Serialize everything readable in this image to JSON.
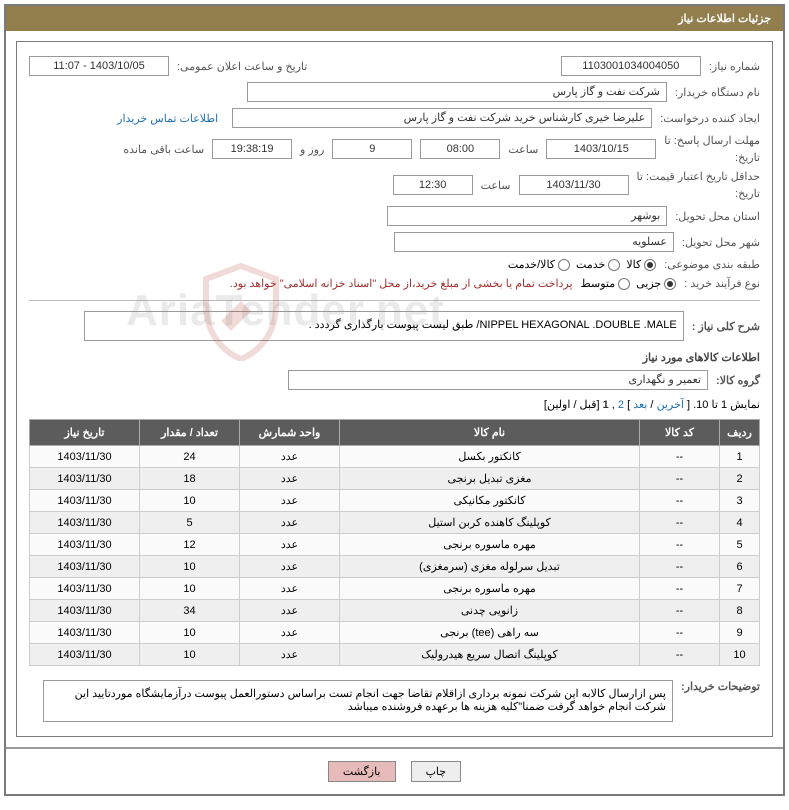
{
  "header": {
    "title": "جزئیات اطلاعات نیاز"
  },
  "fields": {
    "need_number_label": "شماره نیاز:",
    "need_number": "1103001034004050",
    "announce_date_label": "تاریخ و ساعت اعلان عمومی:",
    "announce_date": "1403/10/05 - 11:07",
    "buyer_org_label": "نام دستگاه خریدار:",
    "buyer_org": "شرکت نفت و گاز پارس",
    "requester_label": "ایجاد کننده درخواست:",
    "requester": "علیرضا  خیری کارشناس خرید  شرکت نفت و گاز پارس",
    "contact_info": "اطلاعات تماس خریدار",
    "deadline_label": "مهلت ارسال پاسخ: تا تاریخ:",
    "deadline_label_top": "مهلت ارسال پاسخ: تا",
    "deadline_label_bottom": "تاریخ:",
    "deadline_date": "1403/10/15",
    "time_label": "ساعت",
    "deadline_time": "08:00",
    "days_value": "9",
    "days_and": "روز و",
    "countdown": "19:38:19",
    "remaining_label": "ساعت باقی مانده",
    "min_valid_label_top": "حداقل تاریخ اعتبار قیمت: تا",
    "min_valid_label_bottom": "تاریخ:",
    "min_valid_date": "1403/11/30",
    "min_valid_time": "12:30",
    "delivery_province_label": "استان محل تحویل:",
    "delivery_province": "بوشهر",
    "delivery_city_label": "شهر محل تحویل:",
    "delivery_city": "عسلویه",
    "subject_class_label": "طبقه بندی موضوعی:",
    "radio_kala": "کالا",
    "radio_khadamat": "خدمت",
    "radio_kala_khadamat": "کالا/خدمت",
    "purchase_type_label": "نوع فرآیند خرید :",
    "radio_jozi": "جزیی",
    "radio_motavaset": "متوسط",
    "purchase_note": "پرداخت تمام یا بخشی از مبلغ خرید،از محل \"اسناد خزانه اسلامی\" خواهد بود.",
    "desc_label": "شرح کلی نیاز :",
    "desc_text": "NIPPEL HEXAGONAL .DOUBLE .MALE/ طبق لیست پیوست بارگذاری گرددد .",
    "goods_info_title": "اطلاعات کالاهای مورد نیاز",
    "group_label": "گروه کالا:",
    "group_value": "تعمیر و نگهداری",
    "pagination_text": "نمایش 1 تا 10. [",
    "pagination_last": "آخرین",
    "pagination_sep1": " / ",
    "pagination_next": "بعد",
    "pagination_sep2": "] ",
    "pagination_p2": "2",
    "pagination_p1": "1",
    "pagination_first": " [قبل / اولین]",
    "buyer_notes_label": "توضیحات خریدار:",
    "buyer_notes": "پس ازارسال کالابه این شرکت نمونه برداری ازاقلام تقاضا جهت انجام تست براساس دستورالعمل پیوست درآزمایشگاه موردتایید این شرکت انجام خواهد گرفت ضمنا\"کلیه هزینه ها برعهده فروشنده میباشد"
  },
  "table": {
    "headers": {
      "row": "ردیف",
      "code": "کد کالا",
      "name": "نام کالا",
      "unit": "واحد شمارش",
      "qty": "تعداد / مقدار",
      "date": "تاریخ نیاز"
    },
    "rows": [
      {
        "row": "1",
        "code": "--",
        "name": "کانکتور بکسل",
        "unit": "عدد",
        "qty": "24",
        "date": "1403/11/30"
      },
      {
        "row": "2",
        "code": "--",
        "name": "مغزی تبدیل برنجی",
        "unit": "عدد",
        "qty": "18",
        "date": "1403/11/30"
      },
      {
        "row": "3",
        "code": "--",
        "name": "کانکتور مکانیکی",
        "unit": "عدد",
        "qty": "10",
        "date": "1403/11/30"
      },
      {
        "row": "4",
        "code": "--",
        "name": "کوپلینگ کاهنده کربن استیل",
        "unit": "عدد",
        "qty": "5",
        "date": "1403/11/30"
      },
      {
        "row": "5",
        "code": "--",
        "name": "مهره ماسوره برنجی",
        "unit": "عدد",
        "qty": "12",
        "date": "1403/11/30"
      },
      {
        "row": "6",
        "code": "--",
        "name": "تبدیل سرلوله مغزی (سرمغزی)",
        "unit": "عدد",
        "qty": "10",
        "date": "1403/11/30"
      },
      {
        "row": "7",
        "code": "--",
        "name": "مهره ماسوره برنجی",
        "unit": "عدد",
        "qty": "10",
        "date": "1403/11/30"
      },
      {
        "row": "8",
        "code": "--",
        "name": "زانویی چدنی",
        "unit": "عدد",
        "qty": "34",
        "date": "1403/11/30"
      },
      {
        "row": "9",
        "code": "--",
        "name": "سه راهی (tee) برنجی",
        "unit": "عدد",
        "qty": "10",
        "date": "1403/11/30"
      },
      {
        "row": "10",
        "code": "--",
        "name": "کوپلینگ اتصال سریع هیدرولیک",
        "unit": "عدد",
        "qty": "10",
        "date": "1403/11/30"
      }
    ]
  },
  "buttons": {
    "print": "چاپ",
    "back": "بازگشت"
  },
  "watermark": "AriaTender.net"
}
